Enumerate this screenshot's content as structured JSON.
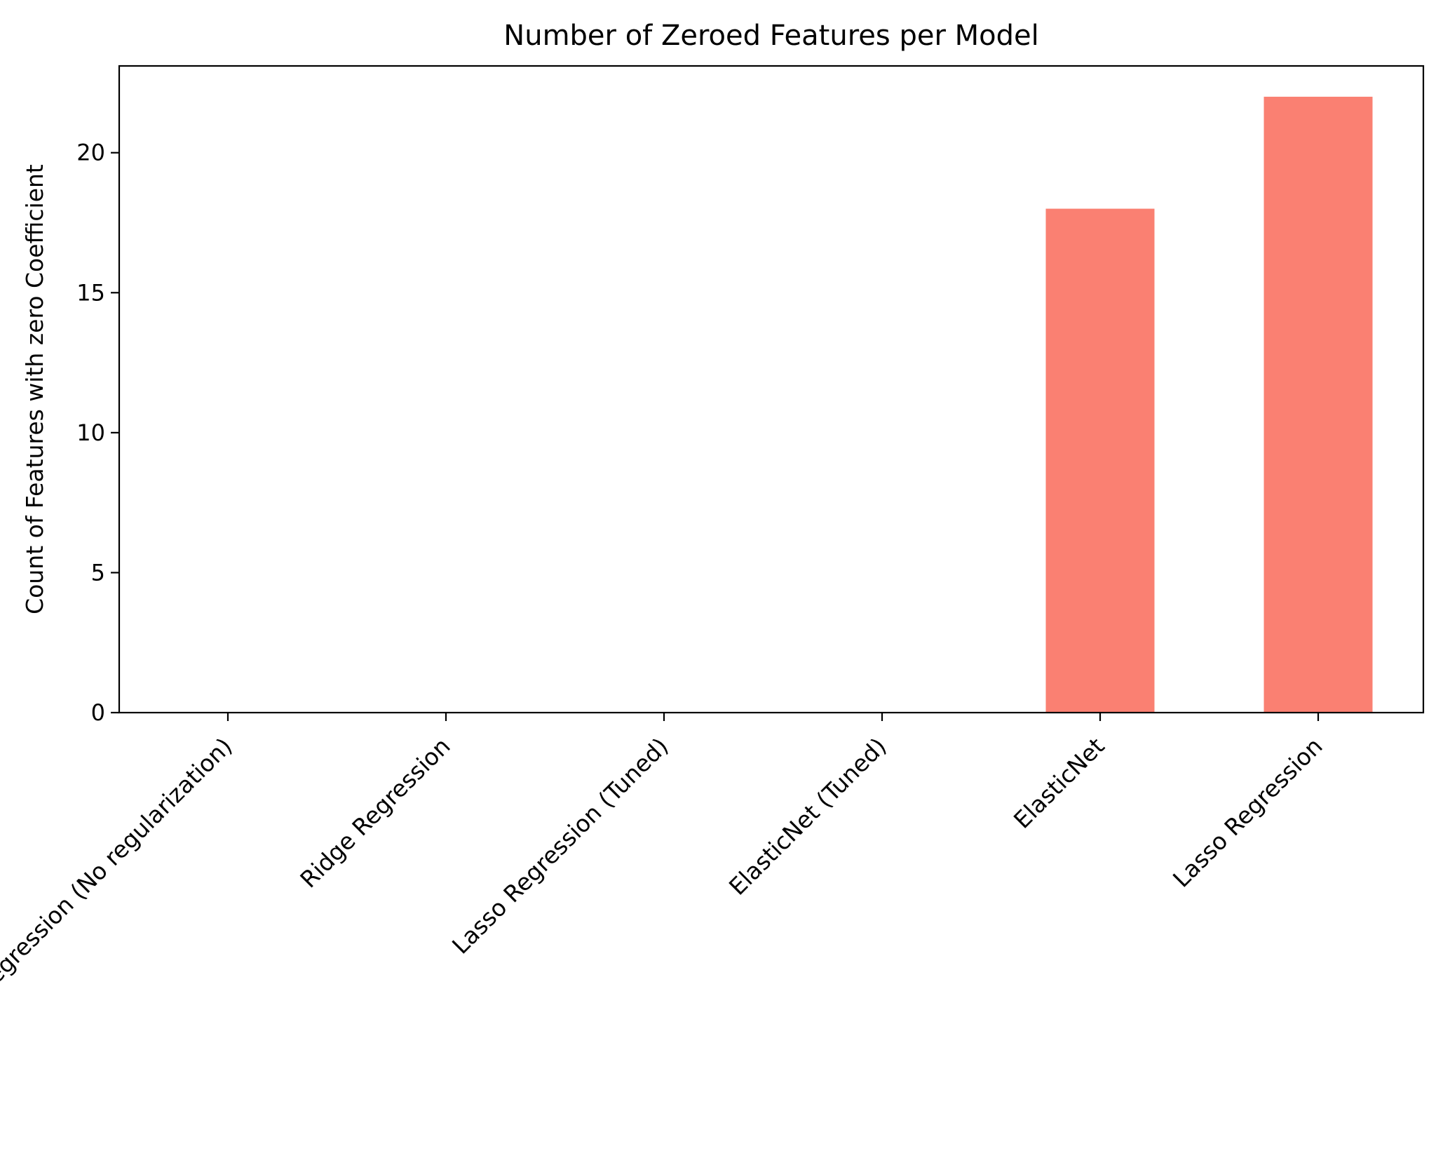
{
  "chart_data": {
    "type": "bar",
    "title": "Number of Zeroed Features per Model",
    "xlabel": "",
    "ylabel": "Count of Features with zero Coefficient",
    "categories": [
      "Linear Regression (No regularization)",
      "Ridge Regression",
      "Lasso Regression (Tuned)",
      "ElasticNet (Tuned)",
      "ElasticNet",
      "Lasso Regression"
    ],
    "values": [
      0,
      0,
      0,
      0,
      18,
      22
    ],
    "ylim": [
      0,
      23.1
    ],
    "yticks": [
      0,
      5,
      10,
      15,
      20
    ],
    "bar_color": "#fa8072",
    "grid": false,
    "legend": "none"
  }
}
